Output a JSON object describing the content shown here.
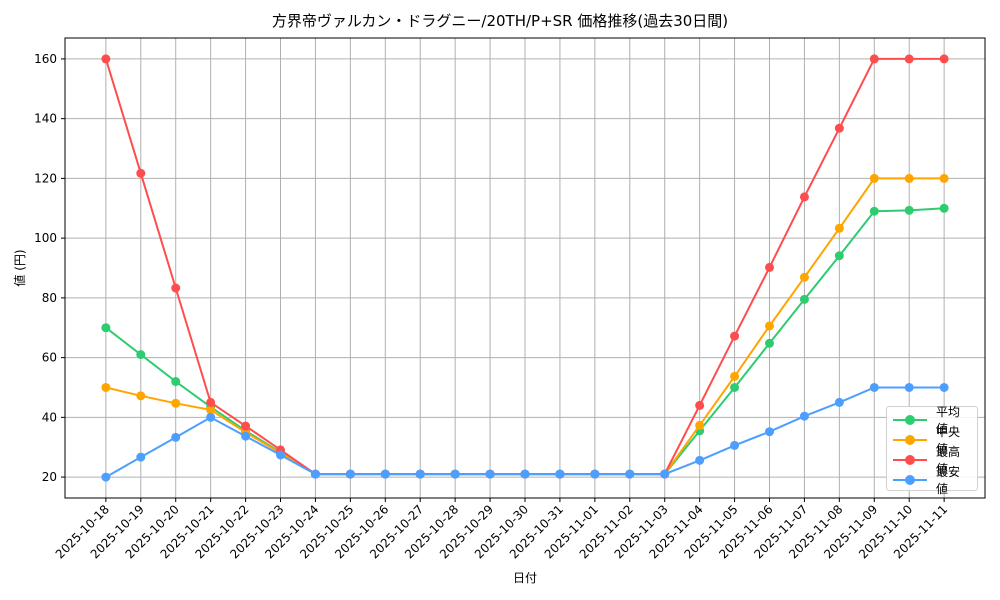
{
  "chart_data": {
    "type": "line",
    "title": "方界帝ヴァルカン・ドラグニー/20TH/P+SR 価格推移(過去30日間)",
    "xlabel": "日付",
    "ylabel": "値 (円)",
    "categories": [
      "2025-10-18",
      "2025-10-19",
      "2025-10-20",
      "2025-10-21",
      "2025-10-22",
      "2025-10-23",
      "2025-10-24",
      "2025-10-25",
      "2025-10-26",
      "2025-10-27",
      "2025-10-28",
      "2025-10-29",
      "2025-10-30",
      "2025-10-31",
      "2025-11-01",
      "2025-11-02",
      "2025-11-03",
      "2025-11-04",
      "2025-11-05",
      "2025-11-06",
      "2025-11-07",
      "2025-11-08",
      "2025-11-09",
      "2025-11-10",
      "2025-11-11"
    ],
    "series": [
      {
        "name": "平均値",
        "color": "#2ecc71",
        "values": [
          70,
          61,
          52,
          43.5,
          35.5,
          28.3,
          21,
          21,
          21,
          21,
          21,
          21,
          21,
          21,
          21,
          21,
          21,
          35.5,
          50,
          64.8,
          79.5,
          94.1,
          109,
          109.3,
          110
        ]
      },
      {
        "name": "中央値",
        "color": "#ffa500",
        "values": [
          50,
          47.2,
          44.7,
          42.5,
          35,
          28,
          21,
          21,
          21,
          21,
          21,
          21,
          21,
          21,
          21,
          21,
          21,
          37.3,
          53.7,
          70.6,
          86.9,
          103.3,
          120,
          120,
          120
        ]
      },
      {
        "name": "最高値",
        "color": "#ff4d4d",
        "values": [
          160,
          121.7,
          83.3,
          45,
          37.1,
          29.1,
          21,
          21,
          21,
          21,
          21,
          21,
          21,
          21,
          21,
          21,
          21,
          44,
          67.2,
          90.2,
          113.8,
          136.8,
          160,
          160,
          160
        ]
      },
      {
        "name": "最安値",
        "color": "#4d9fff",
        "values": [
          20,
          26.7,
          33.3,
          40,
          33.7,
          27.4,
          21,
          21,
          21,
          21,
          21,
          21,
          21,
          21,
          21,
          21,
          21,
          25.6,
          30.6,
          35.2,
          40.4,
          45,
          50,
          50,
          50
        ]
      }
    ],
    "yticks": [
      20,
      40,
      60,
      80,
      100,
      120,
      140,
      160
    ],
    "ylim": [
      13,
      167
    ],
    "xlim": [
      -1.17,
      25.17
    ],
    "grid": true,
    "legend_position": "lower right"
  }
}
